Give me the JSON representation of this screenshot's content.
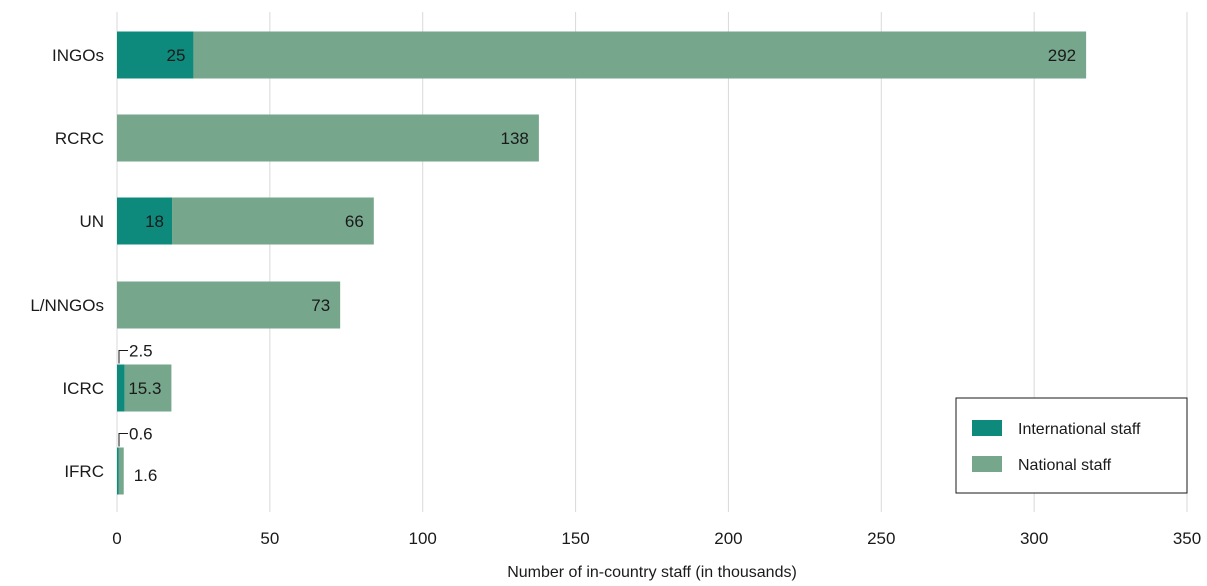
{
  "chart_data": {
    "type": "bar",
    "orientation": "horizontal",
    "stacked": true,
    "categories": [
      "INGOs",
      "RCRC",
      "UN",
      "L/NNGOs",
      "ICRC",
      "IFRC"
    ],
    "series": [
      {
        "name": "International staff",
        "color": "#0e8a7c",
        "values": [
          25,
          0,
          18,
          0,
          2.5,
          0.6
        ],
        "labels": [
          "25",
          "",
          "18",
          "",
          "2.5",
          "0.6"
        ]
      },
      {
        "name": "National staff",
        "color": "#76a68c",
        "values": [
          292,
          138,
          66,
          73,
          15.3,
          1.6
        ],
        "labels": [
          "292",
          "138",
          "66",
          "73",
          "15.3",
          "1.6"
        ]
      }
    ],
    "xlabel": "Number of in-country staff (in thousands)",
    "xlim": [
      0,
      350
    ],
    "xticks": [
      0,
      50,
      100,
      150,
      200,
      250,
      300,
      350
    ],
    "xtick_labels": [
      "0",
      "50",
      "100",
      "150",
      "200",
      "250",
      "300",
      "350"
    ],
    "grid": true,
    "legend_position": "bottom-right"
  }
}
